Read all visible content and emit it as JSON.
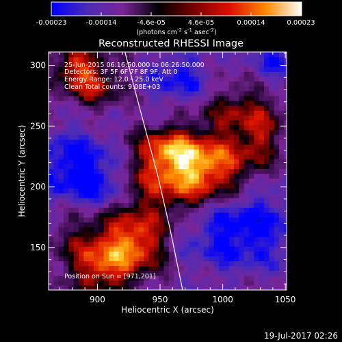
{
  "colorbar": {
    "ticks": [
      "-0.00023",
      "-0.00014",
      "-4.6e-05",
      "4.6e-05",
      "0.00014",
      "0.00023"
    ],
    "units": "(photons cm",
    "units_exp1": "-2",
    "units_mid": " s",
    "units_exp2": "-1",
    "units_tail": " asec",
    "units_exp3": "-2",
    "units_close": ")",
    "colors": [
      "#0000ff",
      "#4b2bb7",
      "#7a2597",
      "#000000",
      "#7a0000",
      "#e01000",
      "#ff8a00",
      "#ffffff"
    ]
  },
  "header": {
    "line1": "25-Jun-2015 06:16:50.000 to 06:26:50.000",
    "line2": "Detectors: 3F 5F 6F 7F 8F 9F, Att 0",
    "line3": "Energy Range: 12.0 - 25.0 keV",
    "line4": "Clean    Total counts: 9.08E+03"
  },
  "footer": {
    "position": "Position on Sun = [971,201]",
    "timestamp": "19-Jul-2017 02:26"
  },
  "chart_data": {
    "type": "heatmap",
    "title": "Reconstructed RHESSI Image",
    "xlabel": "Heliocentric X (arcsec)",
    "ylabel": "Heliocentric Y (arcsec)",
    "xlim": [
      861,
      1051
    ],
    "ylim": [
      115,
      311
    ],
    "xticks": [
      900,
      950,
      1000,
      1050
    ],
    "yticks": [
      150,
      200,
      250,
      300
    ],
    "zlim": [
      -0.00023,
      0.00023
    ],
    "zunits": "photons cm^-2 s^-1 asec^-2",
    "limb_line": [
      [
        922,
        311
      ],
      [
        935,
        260
      ],
      [
        948,
        210
      ],
      [
        958,
        165
      ],
      [
        968,
        115
      ]
    ],
    "source_centroid": [
      971,
      201
    ],
    "blobs": [
      {
        "x": 972,
        "y": 205,
        "sx": 32,
        "sy": 22,
        "amp": 1.0
      },
      {
        "x": 955,
        "y": 232,
        "sx": 16,
        "sy": 12,
        "amp": 0.6
      },
      {
        "x": 990,
        "y": 222,
        "sx": 26,
        "sy": 16,
        "amp": 0.55
      },
      {
        "x": 1015,
        "y": 262,
        "sx": 22,
        "sy": 16,
        "amp": 0.55
      },
      {
        "x": 1030,
        "y": 240,
        "sx": 10,
        "sy": 14,
        "amp": 0.4
      },
      {
        "x": 895,
        "y": 285,
        "sx": 16,
        "sy": 14,
        "amp": 0.7
      },
      {
        "x": 882,
        "y": 302,
        "sx": 12,
        "sy": 10,
        "amp": 0.6
      },
      {
        "x": 912,
        "y": 160,
        "sx": 28,
        "sy": 22,
        "amp": 0.75
      },
      {
        "x": 905,
        "y": 132,
        "sx": 18,
        "sy": 14,
        "amp": 0.65
      },
      {
        "x": 935,
        "y": 153,
        "sx": 14,
        "sy": 14,
        "amp": 0.5
      }
    ],
    "negative_bands": [
      {
        "x": 1010,
        "y": 170,
        "sx": 36,
        "sy": 26,
        "amp": -0.75
      },
      {
        "x": 880,
        "y": 215,
        "sx": 24,
        "sy": 24,
        "amp": -0.65
      },
      {
        "x": 905,
        "y": 195,
        "sx": 14,
        "sy": 18,
        "amp": -0.45
      },
      {
        "x": 965,
        "y": 290,
        "sx": 20,
        "sy": 16,
        "amp": -0.5
      },
      {
        "x": 1040,
        "y": 300,
        "sx": 14,
        "sy": 12,
        "amp": -0.45
      }
    ]
  }
}
